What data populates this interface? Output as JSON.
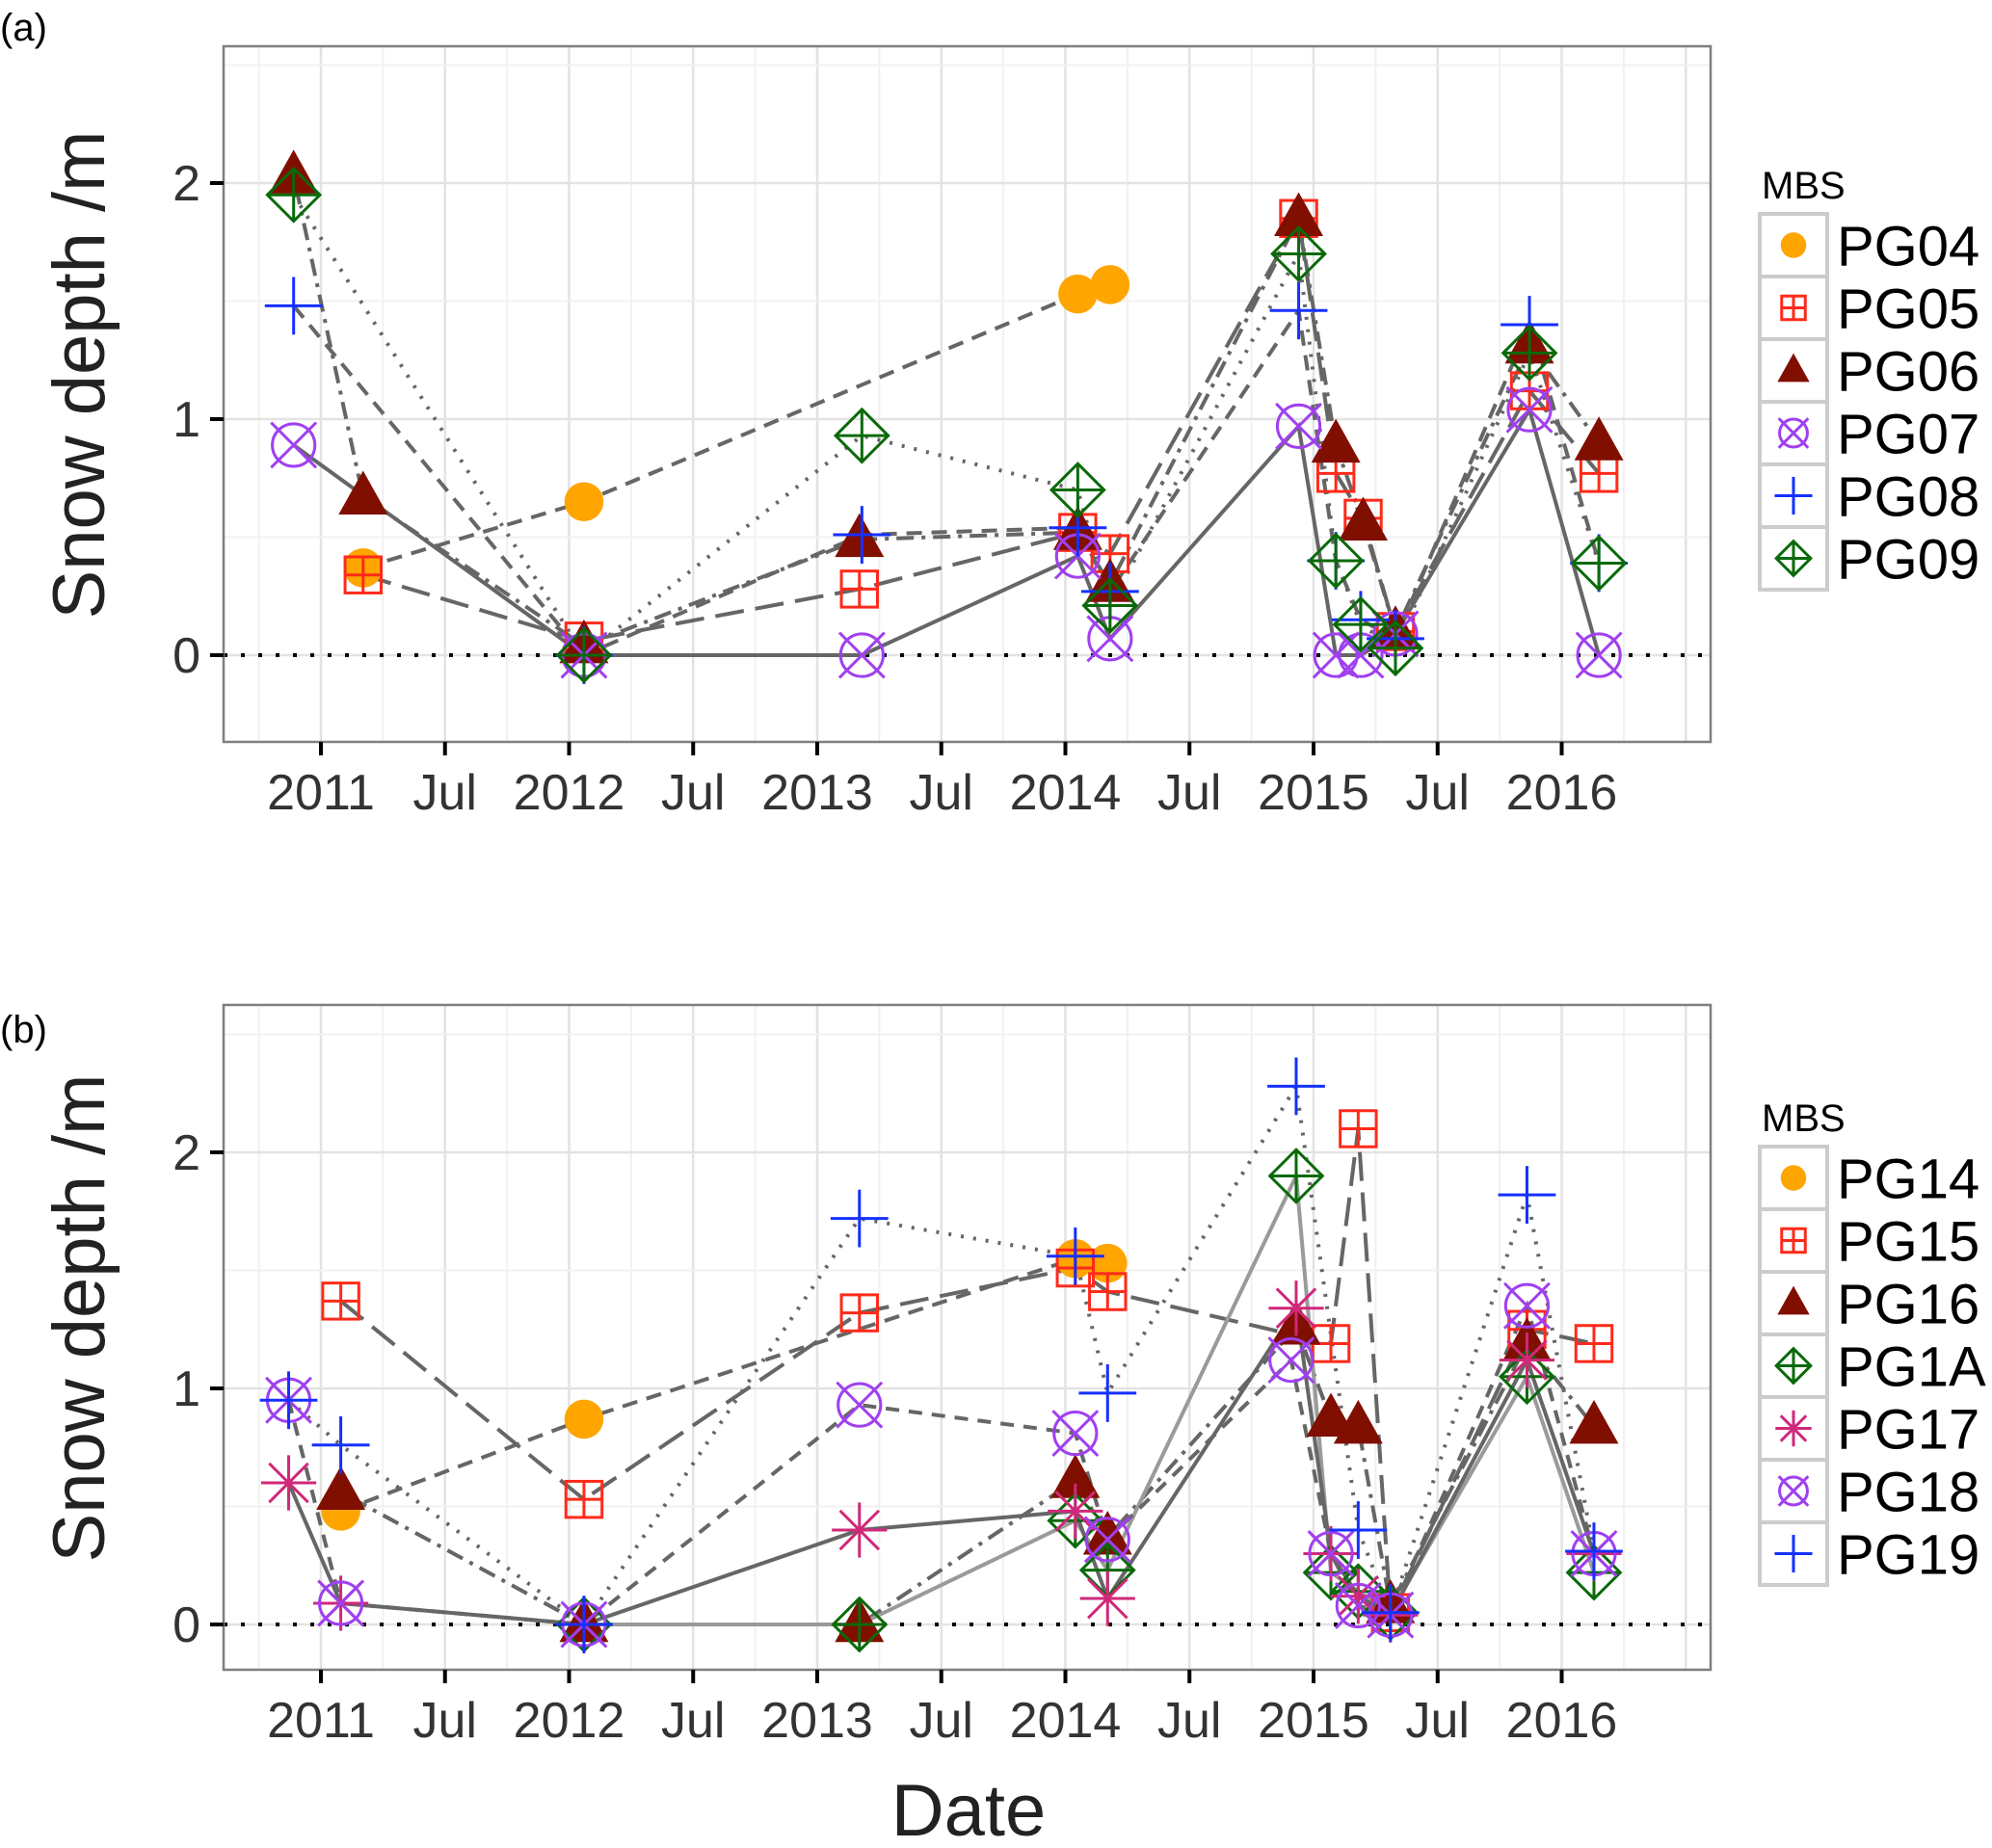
{
  "figure": {
    "xlabel": "Date",
    "x_tick_labels": [
      "2011",
      "Jul",
      "2012",
      "Jul",
      "2013",
      "Jul",
      "2014",
      "Jul",
      "2015",
      "Jul",
      "2016"
    ],
    "x_tick_values": [
      2011.0,
      2011.5,
      2012.0,
      2012.5,
      2013.0,
      2013.5,
      2014.0,
      2014.5,
      2015.0,
      2015.5,
      2016.0
    ]
  },
  "chart_data": [
    {
      "type": "scatter",
      "panel_label": "(a)",
      "title": "",
      "xlabel": "",
      "ylabel": "Snow depth /m",
      "xlim": [
        2010.6,
        2016.6
      ],
      "ylim": [
        -0.37,
        2.58
      ],
      "y_ticks": [
        0,
        1,
        2
      ],
      "y_tick_labels": [
        "0",
        "1",
        "2"
      ],
      "grid": true,
      "reference_line": {
        "y": 0,
        "style": "dotted"
      },
      "legend": {
        "title": "MBS",
        "position": "right"
      },
      "series": [
        {
          "name": "PG04",
          "marker": "circle",
          "color": "#FFA500",
          "line": "dashed",
          "points": [
            [
              2011.17,
              0.37
            ],
            [
              2012.06,
              0.65
            ],
            [
              2014.05,
              1.53
            ],
            [
              2014.18,
              1.57
            ]
          ]
        },
        {
          "name": "PG05",
          "marker": "square-plus",
          "color": "#FF2A1A",
          "line": "longdash",
          "points": [
            [
              2011.17,
              0.34
            ],
            [
              2012.06,
              0.06
            ],
            [
              2013.17,
              0.28
            ],
            [
              2014.05,
              0.52
            ],
            [
              2014.18,
              0.43
            ],
            [
              2014.94,
              1.85
            ],
            [
              2015.09,
              0.77
            ],
            [
              2015.2,
              0.58
            ],
            [
              2015.33,
              0.1
            ],
            [
              2015.87,
              1.12
            ],
            [
              2016.15,
              0.77
            ]
          ]
        },
        {
          "name": "PG06",
          "marker": "triangle",
          "color": "#800F00",
          "line": "dotdash",
          "points": [
            [
              2010.89,
              2.03
            ],
            [
              2011.17,
              0.67
            ],
            [
              2012.06,
              0.04
            ],
            [
              2013.17,
              0.49
            ],
            [
              2014.05,
              0.52
            ],
            [
              2014.18,
              0.3
            ],
            [
              2014.94,
              1.85
            ],
            [
              2015.09,
              0.89
            ],
            [
              2015.2,
              0.56
            ],
            [
              2015.33,
              0.1
            ],
            [
              2015.87,
              1.31
            ],
            [
              2016.15,
              0.9
            ]
          ]
        },
        {
          "name": "PG07",
          "marker": "circle-x",
          "color": "#A040F0",
          "line": "solid",
          "points": [
            [
              2010.89,
              0.89
            ],
            [
              2012.06,
              0.0
            ],
            [
              2013.18,
              0.0
            ],
            [
              2014.05,
              0.42
            ],
            [
              2014.18,
              0.07
            ],
            [
              2014.94,
              0.97
            ],
            [
              2015.09,
              0.0
            ],
            [
              2015.19,
              0.0
            ],
            [
              2015.33,
              0.09
            ],
            [
              2015.87,
              1.04
            ],
            [
              2016.15,
              0.0
            ]
          ]
        },
        {
          "name": "PG08",
          "marker": "plus",
          "color": "#1530FF",
          "line": "dashed",
          "points": [
            [
              2010.89,
              1.48
            ],
            [
              2012.06,
              0.0
            ],
            [
              2013.18,
              0.51
            ],
            [
              2014.05,
              0.54
            ],
            [
              2014.18,
              0.27
            ],
            [
              2014.94,
              1.46
            ],
            [
              2015.09,
              0.4
            ],
            [
              2015.19,
              0.15
            ],
            [
              2015.33,
              0.07
            ],
            [
              2015.87,
              1.4
            ],
            [
              2016.15,
              0.39
            ]
          ]
        },
        {
          "name": "PG09",
          "marker": "diamond-plus",
          "color": "#0A6A0A",
          "line": "dotted",
          "points": [
            [
              2010.89,
              1.95
            ],
            [
              2012.06,
              0.0
            ],
            [
              2013.18,
              0.93
            ],
            [
              2014.05,
              0.7
            ],
            [
              2014.18,
              0.21
            ],
            [
              2014.94,
              1.7
            ],
            [
              2015.09,
              0.4
            ],
            [
              2015.19,
              0.13
            ],
            [
              2015.33,
              0.03
            ],
            [
              2015.87,
              1.28
            ],
            [
              2016.15,
              0.39
            ]
          ]
        }
      ]
    },
    {
      "type": "scatter",
      "panel_label": "(b)",
      "title": "",
      "xlabel": "Date",
      "ylabel": "Snow depth /m",
      "xlim": [
        2010.6,
        2016.6
      ],
      "ylim": [
        -0.37,
        2.58
      ],
      "y_ticks": [
        0,
        1,
        2
      ],
      "y_tick_labels": [
        "0",
        "1",
        "2"
      ],
      "grid": true,
      "reference_line": {
        "y": 0,
        "style": "dotted"
      },
      "legend": {
        "title": "MBS",
        "position": "right"
      },
      "series": [
        {
          "name": "PG14",
          "marker": "circle",
          "color": "#FFA500",
          "line": "dashed",
          "points": [
            [
              2011.08,
              0.48
            ],
            [
              2012.06,
              0.87
            ],
            [
              2014.04,
              1.55
            ],
            [
              2014.17,
              1.53
            ]
          ]
        },
        {
          "name": "PG15",
          "marker": "square-plus",
          "color": "#FF2A1A",
          "line": "longdash",
          "points": [
            [
              2011.08,
              1.37
            ],
            [
              2012.06,
              0.53
            ],
            [
              2013.17,
              1.32
            ],
            [
              2014.04,
              1.51
            ],
            [
              2014.17,
              1.41
            ],
            [
              2015.07,
              1.19
            ],
            [
              2015.18,
              2.1
            ],
            [
              2015.31,
              0.05
            ],
            [
              2015.86,
              1.25
            ],
            [
              2016.13,
              1.19
            ]
          ]
        },
        {
          "name": "PG16",
          "marker": "triangle",
          "color": "#800F00",
          "line": "dotdash",
          "points": [
            [
              2011.08,
              0.56
            ],
            [
              2012.06,
              0.0
            ],
            [
              2013.17,
              0.0
            ],
            [
              2014.04,
              0.61
            ],
            [
              2014.17,
              0.37
            ],
            [
              2014.93,
              1.26
            ],
            [
              2015.07,
              0.87
            ],
            [
              2015.18,
              0.84
            ],
            [
              2015.31,
              0.08
            ],
            [
              2015.86,
              1.19
            ],
            [
              2016.13,
              0.84
            ]
          ]
        },
        {
          "name": "PG1A",
          "marker": "diamond-plus",
          "color": "#0A6A0A",
          "line": "solid-light",
          "points": [
            [
              2012.06,
              0.0
            ],
            [
              2013.17,
              0.0
            ],
            [
              2014.04,
              0.44
            ],
            [
              2014.17,
              0.23
            ],
            [
              2014.93,
              1.9
            ],
            [
              2015.07,
              0.22
            ],
            [
              2015.18,
              0.14
            ],
            [
              2015.31,
              0.05
            ],
            [
              2015.86,
              1.05
            ],
            [
              2016.13,
              0.22
            ]
          ]
        },
        {
          "name": "PG17",
          "marker": "asterisk",
          "color": "#D0287A",
          "line": "solid",
          "points": [
            [
              2010.87,
              0.6
            ],
            [
              2011.08,
              0.09
            ],
            [
              2012.06,
              0.0
            ],
            [
              2013.17,
              0.4
            ],
            [
              2014.04,
              0.48
            ],
            [
              2014.17,
              0.11
            ],
            [
              2014.93,
              1.34
            ],
            [
              2015.07,
              0.3
            ],
            [
              2015.18,
              0.12
            ],
            [
              2015.31,
              0.04
            ],
            [
              2015.86,
              1.12
            ],
            [
              2016.13,
              0.3
            ]
          ]
        },
        {
          "name": "PG18",
          "marker": "circle-x",
          "color": "#A040F0",
          "line": "dashed-short",
          "points": [
            [
              2010.87,
              0.95
            ],
            [
              2011.08,
              0.09
            ],
            [
              2012.06,
              0.0
            ],
            [
              2013.17,
              0.93
            ],
            [
              2014.04,
              0.81
            ],
            [
              2014.17,
              0.36
            ],
            [
              2014.91,
              1.12
            ],
            [
              2015.07,
              0.3
            ],
            [
              2015.18,
              0.08
            ],
            [
              2015.31,
              0.04
            ],
            [
              2015.86,
              1.35
            ],
            [
              2016.13,
              0.3
            ]
          ]
        },
        {
          "name": "PG19",
          "marker": "plus",
          "color": "#1530FF",
          "line": "dotted",
          "points": [
            [
              2010.87,
              0.95
            ],
            [
              2011.08,
              0.76
            ],
            [
              2012.06,
              0.0
            ],
            [
              2013.17,
              1.72
            ],
            [
              2014.04,
              1.56
            ],
            [
              2014.17,
              0.98
            ],
            [
              2014.93,
              2.28
            ],
            [
              2015.18,
              0.4
            ],
            [
              2015.31,
              0.05
            ],
            [
              2015.86,
              1.82
            ],
            [
              2016.13,
              0.31
            ]
          ]
        }
      ]
    }
  ]
}
